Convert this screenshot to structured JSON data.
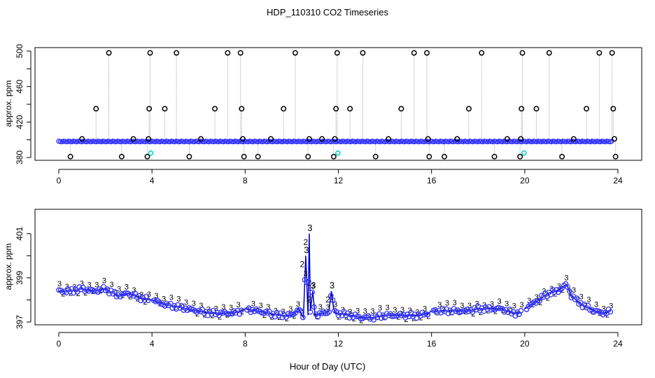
{
  "title": "HDP_110310  CO2 Timeseries",
  "xlabel": "Hour of Day (UTC)",
  "colors": {
    "raw_marker": "#000000",
    "series_line": "#0000cc",
    "series_marker": "#3333ff",
    "alt_marker": "#00cccc",
    "label_2": "#22aa22",
    "label_3": "#1a1acc",
    "drop_line": "#aaaaaa"
  },
  "chart_data": [
    {
      "type": "scatter",
      "ylabel": "approx. ppm",
      "xlim": [
        0,
        24
      ],
      "ylim": [
        380,
        500
      ],
      "x_ticks": [
        0,
        4,
        8,
        12,
        16,
        20,
        24
      ],
      "x_tick_labels": [
        "0",
        "4",
        "8",
        "12",
        "16",
        "20",
        "24"
      ],
      "y_ticks": [
        380,
        420,
        460,
        500
      ],
      "y_tick_labels": [
        "380",
        "420",
        "460",
        "500"
      ],
      "y_minor_ticks": [
        400,
        440,
        480
      ],
      "baseline": 398,
      "series": [
        {
          "kind": "raw-spikes",
          "points": [
            [
              0.5,
              381
            ],
            [
              1.0,
              401
            ],
            [
              1.6,
              435
            ],
            [
              2.15,
              498
            ],
            [
              2.7,
              381
            ],
            [
              3.2,
              401
            ],
            [
              3.8,
              381
            ],
            [
              3.85,
              401
            ],
            [
              3.88,
              435
            ],
            [
              3.92,
              498
            ],
            [
              4.55,
              435
            ],
            [
              5.05,
              498
            ],
            [
              5.6,
              381
            ],
            [
              6.1,
              401
            ],
            [
              6.7,
              435
            ],
            [
              7.25,
              498
            ],
            [
              7.8,
              498
            ],
            [
              7.85,
              435
            ],
            [
              7.9,
              401
            ],
            [
              7.95,
              381
            ],
            [
              8.55,
              381
            ],
            [
              9.1,
              401
            ],
            [
              9.65,
              435
            ],
            [
              10.15,
              498
            ],
            [
              10.7,
              381
            ],
            [
              10.75,
              401
            ],
            [
              11.3,
              401
            ],
            [
              11.8,
              381
            ],
            [
              11.85,
              401
            ],
            [
              11.9,
              435
            ],
            [
              11.95,
              498
            ],
            [
              12.5,
              435
            ],
            [
              13.05,
              498
            ],
            [
              13.6,
              381
            ],
            [
              14.15,
              401
            ],
            [
              14.7,
              435
            ],
            [
              15.25,
              498
            ],
            [
              15.8,
              498
            ],
            [
              15.85,
              401
            ],
            [
              15.9,
              381
            ],
            [
              16.55,
              381
            ],
            [
              17.1,
              401
            ],
            [
              17.6,
              435
            ],
            [
              18.15,
              498
            ],
            [
              18.7,
              381
            ],
            [
              19.25,
              401
            ],
            [
              19.8,
              381
            ],
            [
              19.83,
              401
            ],
            [
              19.86,
              435
            ],
            [
              19.9,
              498
            ],
            [
              20.5,
              435
            ],
            [
              21.05,
              498
            ],
            [
              21.6,
              381
            ],
            [
              22.1,
              401
            ],
            [
              22.65,
              435
            ],
            [
              23.2,
              498
            ],
            [
              23.75,
              498
            ],
            [
              23.8,
              435
            ],
            [
              23.85,
              401
            ],
            [
              23.9,
              381
            ]
          ]
        },
        {
          "kind": "baseline-points",
          "x_start": 0.0,
          "x_end": 23.75,
          "y": 398
        },
        {
          "kind": "cyan-markers",
          "points": [
            [
              3.95,
              385
            ],
            [
              11.98,
              385
            ],
            [
              19.97,
              385
            ]
          ]
        }
      ]
    },
    {
      "type": "line",
      "ylabel": "approx. ppm",
      "xlim": [
        0,
        24
      ],
      "ylim": [
        397,
        401.5
      ],
      "x_ticks": [
        0,
        4,
        8,
        12,
        16,
        20,
        24
      ],
      "x_tick_labels": [
        "0",
        "4",
        "8",
        "12",
        "16",
        "20",
        "24"
      ],
      "y_ticks": [
        397,
        399,
        401
      ],
      "y_tick_labels": [
        "397",
        "399",
        "401"
      ],
      "y_minor_ticks": [
        398,
        400
      ],
      "point_labels": [
        "2",
        "3"
      ],
      "gaps": [
        [
          3.9,
          4.05
        ],
        [
          7.85,
          8.05
        ],
        [
          15.85,
          16.05
        ],
        [
          19.85,
          20.0
        ],
        [
          23.7,
          24
        ]
      ],
      "series": [
        {
          "name": "",
          "x": [
            0.0,
            0.5,
            1.0,
            1.5,
            2.0,
            2.5,
            3.0,
            3.5,
            3.9,
            4.0,
            4.5,
            5.0,
            5.5,
            6.0,
            6.5,
            7.0,
            7.5,
            7.85,
            8.0,
            8.5,
            9.0,
            9.5,
            10.0,
            10.3,
            10.5,
            10.6,
            10.7,
            10.75,
            10.8,
            10.9,
            11.0,
            11.3,
            11.5,
            11.6,
            11.7,
            11.8,
            11.9,
            12.0,
            12.5,
            13.0,
            13.5,
            14.0,
            14.5,
            15.0,
            15.5,
            15.85,
            16.0,
            16.5,
            17.0,
            17.5,
            18.0,
            18.5,
            19.0,
            19.5,
            19.85,
            20.0,
            20.3,
            20.6,
            21.0,
            21.4,
            21.8,
            22.0,
            22.3,
            22.6,
            23.0,
            23.4,
            23.7
          ],
          "y": [
            398.4,
            398.4,
            398.5,
            398.4,
            398.5,
            398.2,
            398.3,
            398.1,
            398.0,
            398.0,
            397.8,
            397.7,
            397.6,
            397.5,
            397.4,
            397.4,
            397.4,
            397.5,
            397.6,
            397.5,
            397.4,
            397.3,
            397.3,
            397.6,
            397.2,
            400.0,
            397.3,
            401.0,
            397.5,
            398.4,
            397.3,
            397.4,
            397.4,
            397.5,
            398.4,
            397.6,
            397.4,
            397.4,
            397.3,
            397.2,
            397.2,
            397.3,
            397.3,
            397.3,
            397.3,
            397.4,
            397.5,
            397.5,
            397.5,
            397.5,
            397.6,
            397.6,
            397.6,
            397.4,
            397.4,
            397.6,
            397.8,
            398.0,
            398.3,
            398.4,
            398.7,
            398.2,
            397.9,
            397.7,
            397.5,
            397.4,
            397.5
          ]
        }
      ]
    }
  ]
}
